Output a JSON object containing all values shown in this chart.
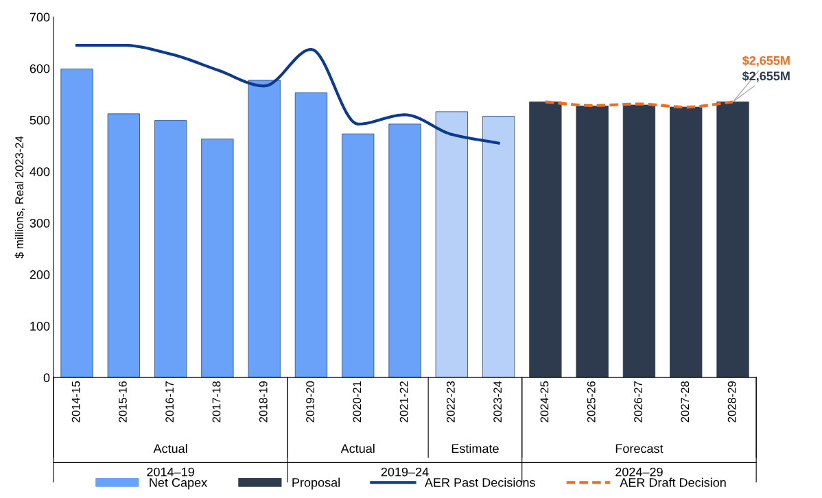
{
  "chart_data": {
    "type": "bar",
    "ylabel": "$ millions, Real 2023-24",
    "categories": [
      "2014-15",
      "2015-16",
      "2016-17",
      "2017-18",
      "2018-19",
      "2019-20",
      "2020-21",
      "2021-22",
      "2022-23",
      "2023-24",
      "2024-25",
      "2025-26",
      "2026-27",
      "2027-28",
      "2028-29"
    ],
    "series": [
      {
        "name": "Net Capex",
        "color": "#6aa1f9",
        "colors": [
          "#6aa1f9",
          "#6aa1f9",
          "#6aa1f9",
          "#6aa1f9",
          "#6aa1f9",
          "#6aa1f9",
          "#6aa1f9",
          "#6aa1f9",
          "#b7d0f7",
          "#b7d0f7",
          null,
          null,
          null,
          null,
          null
        ],
        "values": [
          599,
          512,
          499,
          463,
          577,
          553,
          473,
          492,
          516,
          507,
          null,
          null,
          null,
          null,
          null
        ]
      },
      {
        "name": "Proposal",
        "color": "#2e3b4e",
        "values": [
          null,
          null,
          null,
          null,
          null,
          null,
          null,
          null,
          null,
          null,
          535,
          527,
          529,
          525,
          535
        ]
      },
      {
        "name": "AER Past Decisions",
        "type": "line",
        "color": "#0b3a8f",
        "line_style": "solid",
        "values": [
          645,
          645,
          628,
          597,
          566,
          637,
          492,
          510,
          472,
          455,
          null,
          null,
          null,
          null,
          null
        ]
      },
      {
        "name": "AER Draft Decision",
        "type": "line",
        "color": "#f26b21",
        "line_style": "dashed",
        "values": [
          null,
          null,
          null,
          null,
          null,
          null,
          null,
          null,
          null,
          null,
          535,
          528,
          531,
          525,
          535
        ]
      }
    ],
    "annotations": [
      {
        "text": "$2,655M",
        "x": "2028-29",
        "y": 535
      },
      {
        "text": "$2,655M",
        "x": "2028-29",
        "y": 535
      },
      "Actual",
      "Actual",
      "Estimate",
      "Forecast",
      "2014–19",
      "2019–24",
      "2024–29"
    ],
    "ylim": [
      0,
      700
    ],
    "yticks": [
      0,
      100,
      200,
      300,
      400,
      500,
      600,
      700
    ],
    "grid": false,
    "legend": "bottom"
  }
}
